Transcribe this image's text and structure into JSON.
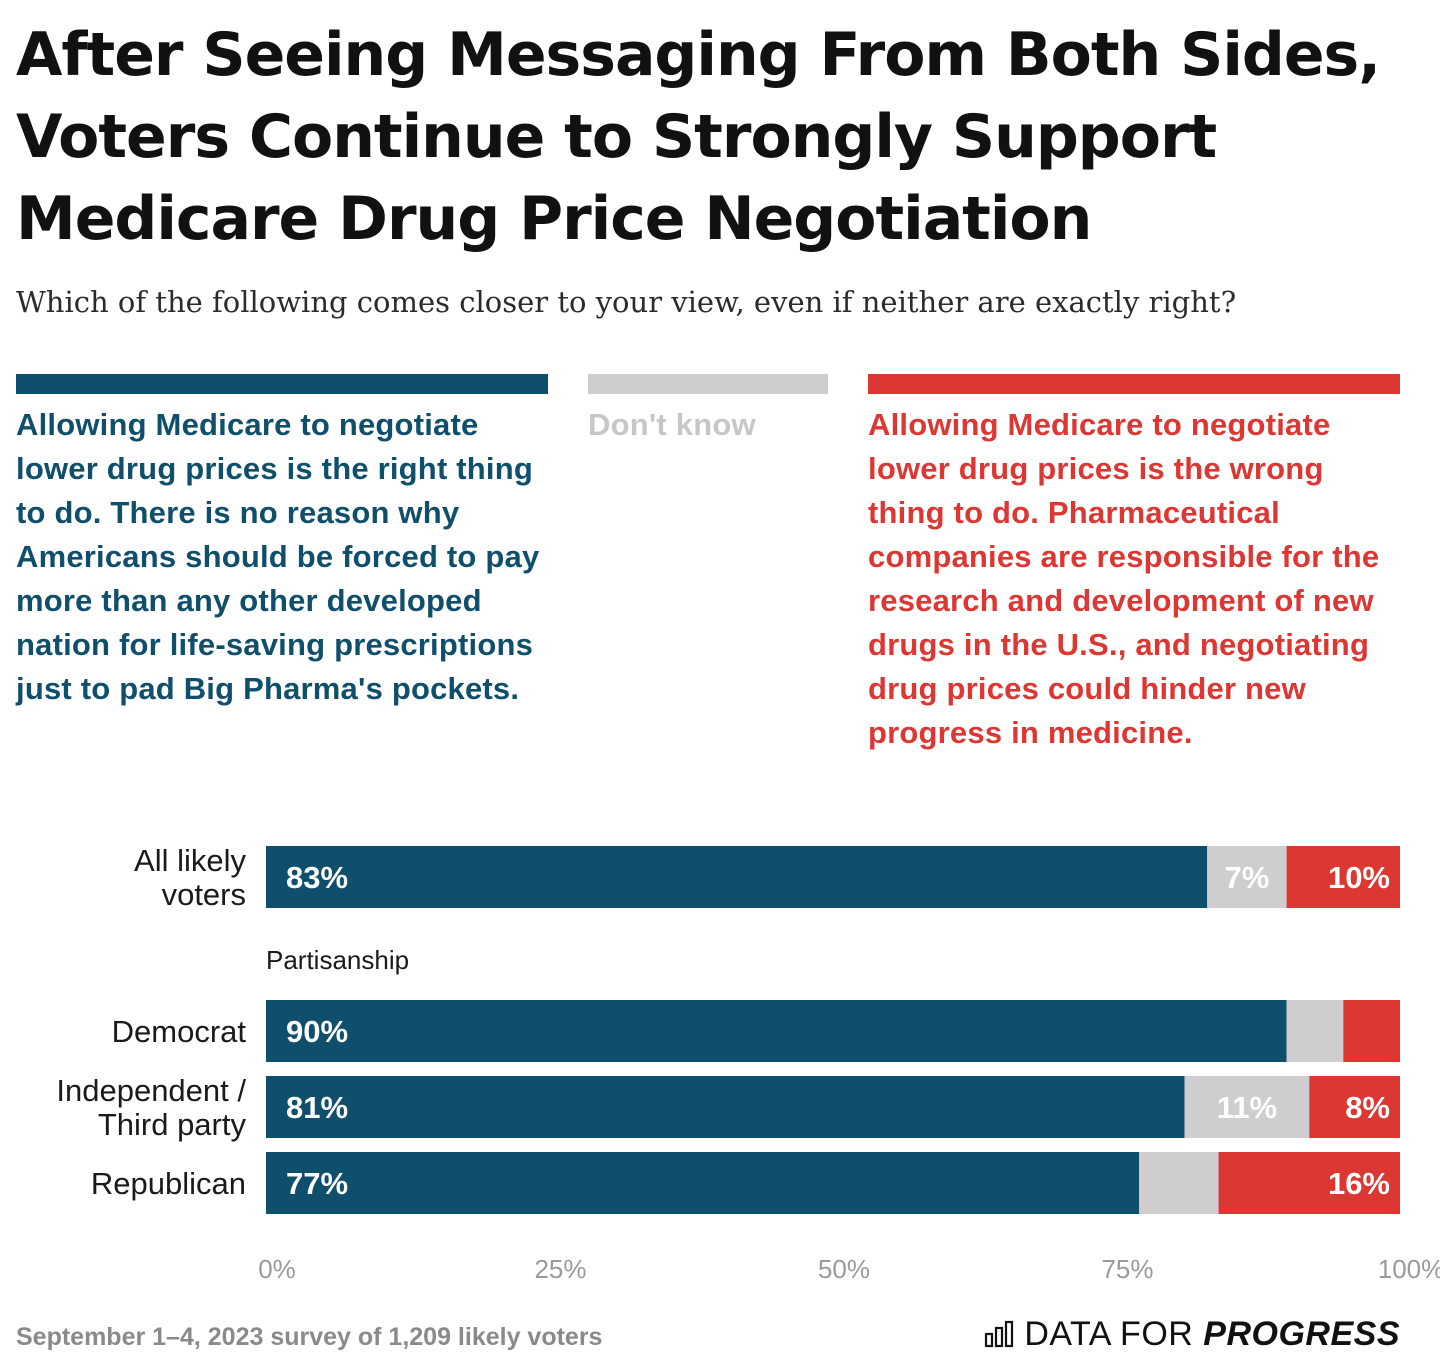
{
  "chart_data": {
    "type": "bar",
    "orientation": "horizontal",
    "stacked": true,
    "title": "After Seeing Messaging From Both Sides, Voters Continue to Strongly Support Medicare Drug Price Negotiation",
    "subtitle": "Which of the following comes closer to your view, even if neither are exactly right?",
    "series": [
      {
        "name": "Allowing Medicare to negotiate lower drug prices is the right thing to do. There is no reason why Americans should be forced to pay more than any other developed nation for life-saving prescriptions just to pad Big Pharma's pockets.",
        "color": "#0f4f6b",
        "label_color": "#ffffff",
        "values": [
          83,
          90,
          81,
          77
        ],
        "labels": [
          "83%",
          "90%",
          "81%",
          "77%"
        ]
      },
      {
        "name": "Don't know",
        "color": "#d0cdd0",
        "label_color": "#ffffff",
        "values": [
          7,
          5,
          11,
          7
        ],
        "labels": [
          "7%",
          "",
          "11%",
          ""
        ]
      },
      {
        "name": "Allowing Medicare to negotiate lower drug prices is the wrong thing to do. Pharmaceutical companies are responsible for the research and development of new drugs in the U.S., and negotiating drug prices could hinder new progress in medicine.",
        "color": "#dc3732",
        "label_color": "#ffffff",
        "values": [
          10,
          5,
          8,
          16
        ],
        "labels": [
          "10%",
          "",
          "8%",
          "16%"
        ]
      }
    ],
    "rows": [
      {
        "label": "All likely voters",
        "label_lines": [
          "All likely",
          "voters"
        ]
      },
      {
        "label": "Democrat",
        "label_lines": [
          "Democrat"
        ]
      },
      {
        "label": "Independent / Third party",
        "label_lines": [
          "Independent /",
          "Third party"
        ]
      },
      {
        "label": "Republican",
        "label_lines": [
          "Republican"
        ]
      }
    ],
    "group_label": "Partisanship",
    "xlim": [
      0,
      100
    ],
    "x_ticks": [
      0,
      25,
      50,
      75,
      100
    ],
    "x_tick_labels": [
      "0%",
      "25%",
      "50%",
      "75%",
      "100%"
    ],
    "grid": false
  },
  "footer": {
    "source_note": "September 1–4, 2023 survey of 1,209 likely voters",
    "brand_regular": "DATA FOR",
    "brand_bold": "PROGRESS"
  },
  "icons": {
    "brand": "bar-chart-logo-icon"
  }
}
